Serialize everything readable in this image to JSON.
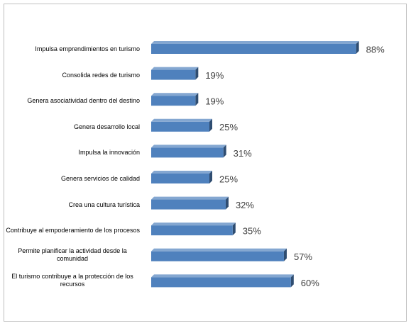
{
  "chart_data": {
    "type": "bar",
    "orientation": "horizontal",
    "categories": [
      "Impulsa emprendimientos en turismo",
      "Consolida redes de turismo",
      "Genera asociatividad dentro del destino",
      "Genera desarrollo local",
      "Impulsa la innovación",
      "Genera servicios de calidad",
      "Crea una cultura turística",
      "Contribuye al empoderamiento de los procesos",
      "Permite planificar la actividad desde la comunidad",
      "El turismo contribuye a la protección de los recursos"
    ],
    "values": [
      88,
      19,
      19,
      25,
      31,
      25,
      32,
      35,
      57,
      60
    ],
    "value_labels": [
      "88%",
      "19%",
      "19%",
      "25%",
      "31%",
      "25%",
      "32%",
      "35%",
      "57%",
      "60%"
    ],
    "color": "#4f81bd"
  }
}
